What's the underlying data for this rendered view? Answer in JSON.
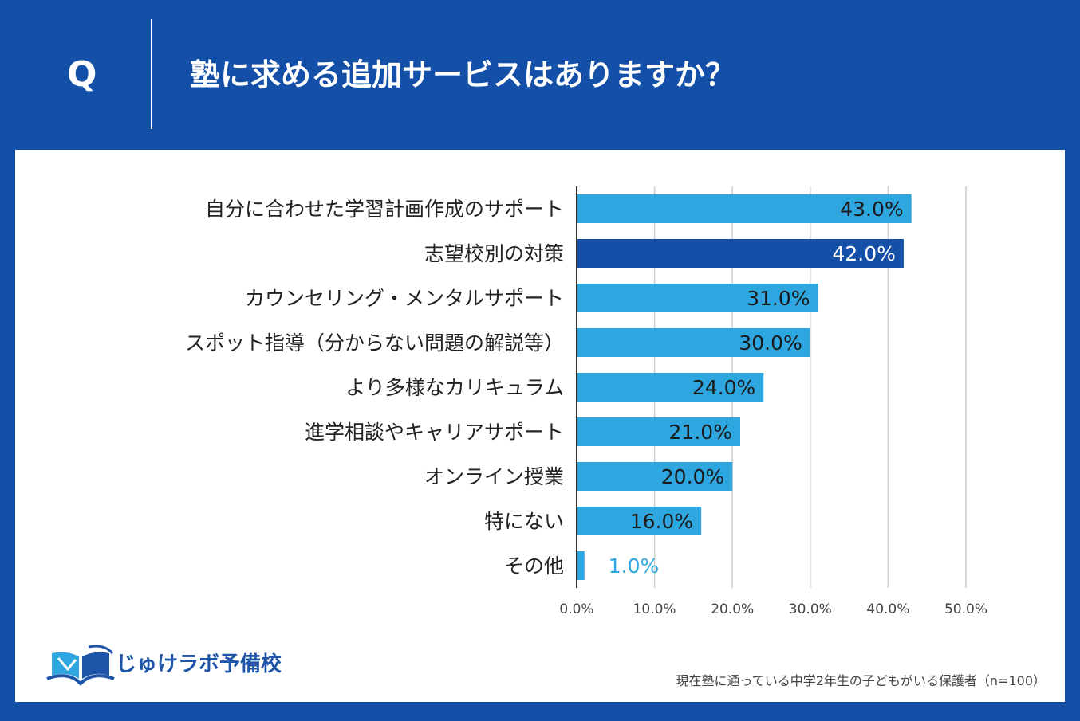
{
  "header": {
    "q_mark": "Q",
    "question": "塾に求める追加サービスはありますか？"
  },
  "chart_data": {
    "type": "bar",
    "orientation": "horizontal",
    "categories": [
      "自分に合わせた学習計画作成のサポート",
      "志望校別の対策",
      "カウンセリング・メンタルサポート",
      "スポット指導（分からない問題の解説等）",
      "より多様なカリキュラム",
      "進学相談やキャリアサポート",
      "オンライン授業",
      "特にない",
      "その他"
    ],
    "values": [
      43.0,
      42.0,
      31.0,
      30.0,
      24.0,
      21.0,
      20.0,
      16.0,
      1.0
    ],
    "value_labels": [
      "43.0%",
      "42.0%",
      "31.0%",
      "30.0%",
      "24.0%",
      "21.0%",
      "20.0%",
      "16.0%",
      "1.0%"
    ],
    "highlight_index": 1,
    "xlim": [
      0,
      50
    ],
    "xticks": [
      0,
      10,
      20,
      30,
      40,
      50
    ],
    "xtick_labels": [
      "0.0%",
      "10.0%",
      "20.0%",
      "30.0%",
      "40.0%",
      "50.0%"
    ],
    "grid": true,
    "colors": {
      "bar": "#2ea6e0",
      "highlight": "#1550a8",
      "label_dark": "#1a1a1a",
      "label_light": "#ffffff",
      "label_outside": "#2ea6e0"
    }
  },
  "logo": {
    "text": "じゅけラボ予備校"
  },
  "footnote": "現在塾に通っている中学2年生の子どもがいる保護者（n=100）",
  "colors": {
    "background": "#1550a8",
    "panel": "#ffffff",
    "grid": "#cccccc",
    "axis": "#333333"
  }
}
